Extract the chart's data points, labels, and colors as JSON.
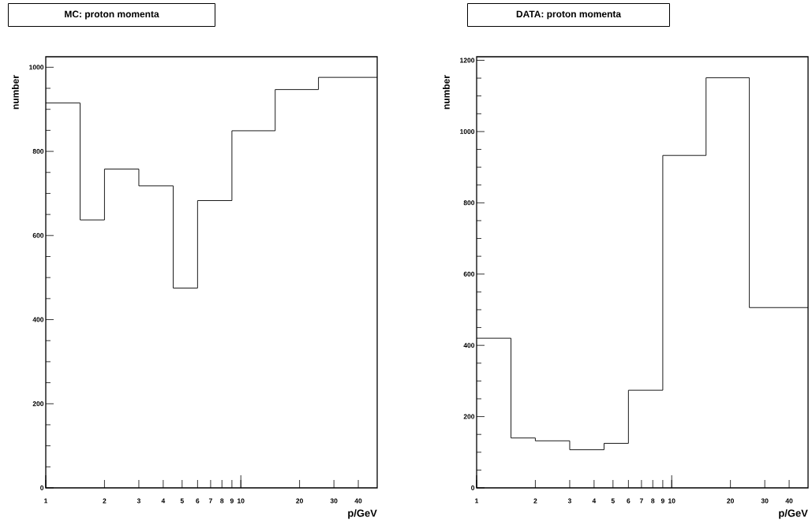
{
  "chart_data": [
    {
      "type": "histogram",
      "title": "MC: proton momenta",
      "xlabel": "p/GeV",
      "ylabel": "number",
      "log": "x",
      "bins": [
        1,
        1.5,
        2,
        3,
        4.5,
        6,
        9,
        15,
        25,
        50
      ],
      "values": [
        915,
        637,
        758,
        718,
        475,
        683,
        849,
        947,
        976
      ],
      "color": "#000000",
      "xlim": [
        1,
        50
      ],
      "ylim": [
        0,
        1025
      ],
      "xticks": [
        1,
        2,
        3,
        4,
        5,
        6,
        7,
        8,
        9,
        10,
        20,
        30,
        40
      ],
      "yticks": [
        0,
        {
          "value": 50,
          "label": null
        },
        {
          "value": 100,
          "label": null
        },
        {
          "value": 150,
          "label": null
        },
        200,
        {
          "value": 250,
          "label": null
        },
        {
          "value": 300,
          "label": null
        },
        {
          "value": 350,
          "label": null
        },
        400,
        {
          "value": 450,
          "label": null
        },
        {
          "value": 500,
          "label": null
        },
        {
          "value": 550,
          "label": null
        },
        600,
        {
          "value": 650,
          "label": null
        },
        {
          "value": 700,
          "label": null
        },
        {
          "value": 750,
          "label": null
        },
        800,
        {
          "value": 850,
          "label": null
        },
        {
          "value": 900,
          "label": null
        },
        {
          "value": 950,
          "label": null
        },
        1000
      ]
    },
    {
      "type": "histogram",
      "title": "DATA: proton momenta",
      "xlabel": "p/GeV",
      "ylabel": "number",
      "log": "x",
      "bins": [
        1,
        1.5,
        2,
        3,
        4.5,
        6,
        9,
        15,
        25,
        50
      ],
      "values": [
        420,
        140,
        132,
        107,
        125,
        274,
        933,
        1151,
        506
      ],
      "color": "#000000",
      "xlim": [
        1,
        50
      ],
      "ylim": [
        0,
        1210
      ],
      "xticks": [
        1,
        2,
        3,
        4,
        5,
        6,
        7,
        8,
        9,
        10,
        20,
        30,
        40
      ],
      "yticks": [
        0,
        {
          "value": 50,
          "label": null
        },
        {
          "value": 100,
          "label": null
        },
        {
          "value": 150,
          "label": null
        },
        200,
        {
          "value": 250,
          "label": null
        },
        {
          "value": 300,
          "label": null
        },
        {
          "value": 350,
          "label": null
        },
        400,
        {
          "value": 450,
          "label": null
        },
        {
          "value": 500,
          "label": null
        },
        {
          "value": 550,
          "label": null
        },
        600,
        {
          "value": 650,
          "label": null
        },
        {
          "value": 700,
          "label": null
        },
        {
          "value": 750,
          "label": null
        },
        800,
        {
          "value": 850,
          "label": null
        },
        {
          "value": 900,
          "label": null
        },
        {
          "value": 950,
          "label": null
        },
        1000,
        {
          "value": 1050,
          "label": null
        },
        {
          "value": 1100,
          "label": null
        },
        {
          "value": 1150,
          "label": null
        },
        1200
      ]
    }
  ]
}
